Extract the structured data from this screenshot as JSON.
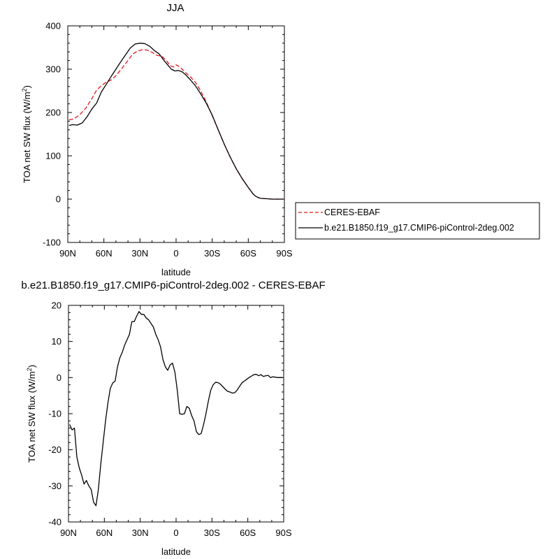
{
  "chart_data": [
    {
      "type": "line",
      "title": "JJA",
      "xlabel": "latitude",
      "ylabel": "TOA net SW flux (W/m",
      "ylabel_sup": "2",
      "ylabel_end": ")",
      "xlim": [
        90,
        -90
      ],
      "ylim": [
        -100,
        400
      ],
      "xticks": [
        90,
        60,
        30,
        0,
        -30,
        -60,
        -90
      ],
      "xticklabels": [
        "90N",
        "60N",
        "30N",
        "0",
        "30S",
        "60S",
        "90S"
      ],
      "yticks": [
        -100,
        0,
        100,
        200,
        300,
        400
      ],
      "yticklabels": [
        "-100",
        "0",
        "100",
        "200",
        "300",
        "400"
      ],
      "legend": {
        "placement": "right",
        "entries": [
          {
            "label": "CERES-EBAF",
            "color": "#e8141b",
            "style": "dashed"
          },
          {
            "label": "b.e21.B1850.f19_g17.CMIP6-piControl-2deg.002",
            "color": "#000000",
            "style": "solid"
          }
        ]
      },
      "series": [
        {
          "name": "CERES-EBAF",
          "color": "#e8141b",
          "style": "dashed",
          "x": [
            89,
            85,
            80,
            75,
            70,
            66,
            62,
            58,
            54,
            50,
            45,
            40,
            36,
            32,
            28,
            24,
            20,
            16,
            12,
            8,
            5,
            2,
            0,
            -2,
            -5,
            -8,
            -12,
            -16,
            -20,
            -25,
            -30,
            -35,
            -40,
            -45,
            -50,
            -55,
            -60,
            -64,
            -66,
            -68,
            -70,
            -75,
            -80,
            -85,
            -89
          ],
          "y": [
            183,
            185,
            195,
            210,
            232,
            252,
            262,
            270,
            275,
            285,
            302,
            320,
            335,
            342,
            345,
            344,
            339,
            332,
            330,
            320,
            308,
            305,
            310,
            307,
            300,
            292,
            282,
            270,
            252,
            225,
            193,
            160,
            127,
            97,
            70,
            47,
            27,
            12,
            7,
            4,
            2,
            1,
            0,
            0,
            0
          ]
        },
        {
          "name": "b.e21.B1850.f19_g17.CMIP6-piControl-2deg.002",
          "color": "#000000",
          "style": "solid",
          "x": [
            89,
            86,
            82,
            78,
            74,
            70,
            66,
            62,
            58,
            54,
            50,
            46,
            42,
            38,
            34,
            30,
            26,
            22,
            18,
            14,
            10,
            7,
            4,
            1,
            -2,
            -5,
            -8,
            -12,
            -16,
            -20,
            -25,
            -30,
            -35,
            -40,
            -45,
            -50,
            -55,
            -60,
            -64,
            -66,
            -68,
            -70,
            -75,
            -80,
            -85,
            -89
          ],
          "y": [
            170,
            172,
            171,
            176,
            190,
            208,
            222,
            248,
            265,
            283,
            300,
            317,
            333,
            349,
            358,
            360,
            359,
            353,
            343,
            335,
            320,
            310,
            300,
            296,
            297,
            294,
            287,
            275,
            262,
            245,
            222,
            194,
            160,
            127,
            97,
            70,
            47,
            27,
            12,
            7,
            4,
            2,
            1,
            0,
            0,
            0
          ]
        }
      ]
    },
    {
      "type": "line",
      "title": "b.e21.B1850.f19_g17.CMIP6-piControl-2deg.002 - CERES-EBAF",
      "xlabel": "latitude",
      "ylabel": "TOA net SW flux (W/m",
      "ylabel_sup": "2",
      "ylabel_end": ")",
      "xlim": [
        90,
        -90
      ],
      "ylim": [
        -40,
        20
      ],
      "xticks": [
        90,
        60,
        30,
        0,
        -30,
        -60,
        -90
      ],
      "xticklabels": [
        "90N",
        "60N",
        "30N",
        "0",
        "30S",
        "60S",
        "90S"
      ],
      "yticks": [
        -40,
        -30,
        -20,
        -10,
        0,
        10,
        20
      ],
      "yticklabels": [
        "-40",
        "-30",
        "-20",
        "-10",
        "0",
        "10",
        "20"
      ],
      "series": [
        {
          "color": "#000000",
          "style": "solid",
          "x": [
            89,
            87,
            85,
            83,
            81,
            79,
            77,
            75,
            73,
            71,
            69,
            67,
            65,
            63,
            61,
            59,
            57,
            55,
            53,
            51,
            49,
            47,
            45,
            43,
            41,
            39,
            37,
            35,
            33,
            31,
            29,
            27,
            25,
            23,
            21,
            19,
            17,
            15,
            13,
            11,
            9,
            7,
            5,
            3,
            1,
            -1,
            -3,
            -5,
            -7,
            -9,
            -11,
            -13,
            -15,
            -17,
            -19,
            -21,
            -23,
            -25,
            -27,
            -29,
            -31,
            -33,
            -35,
            -37,
            -39,
            -41,
            -43,
            -45,
            -47,
            -49,
            -51,
            -53,
            -55,
            -57,
            -59,
            -61,
            -63,
            -65,
            -67,
            -69,
            -71,
            -73,
            -75,
            -77,
            -79,
            -81,
            -83,
            -85,
            -87,
            -89
          ],
          "y": [
            -13,
            -14.5,
            -14,
            -22,
            -25,
            -27,
            -29.5,
            -28.5,
            -30,
            -31,
            -34.5,
            -35.5,
            -31,
            -24,
            -18,
            -12,
            -7,
            -3,
            -1.5,
            -1,
            3,
            5.5,
            7,
            9,
            10.5,
            12,
            15.5,
            15.5,
            17,
            18.3,
            17.5,
            17.5,
            16.5,
            16,
            15,
            14,
            12,
            10.5,
            8.5,
            5,
            3,
            2,
            3.5,
            4,
            1.5,
            -3.5,
            -10,
            -10.2,
            -10,
            -8,
            -8.5,
            -10.5,
            -12,
            -15,
            -15.8,
            -15.5,
            -13,
            -10,
            -6.5,
            -3.5,
            -2,
            -1.3,
            -1.4,
            -1.8,
            -2.5,
            -3.2,
            -3.8,
            -4,
            -4.3,
            -4.2,
            -3.5,
            -2.5,
            -1.5,
            -1,
            -0.5,
            0,
            0.4,
            0.8,
            0.9,
            0.5,
            0.8,
            0.3,
            0.5,
            0.6,
            0,
            0.2,
            0.1,
            0,
            0,
            0
          ]
        }
      ]
    }
  ]
}
